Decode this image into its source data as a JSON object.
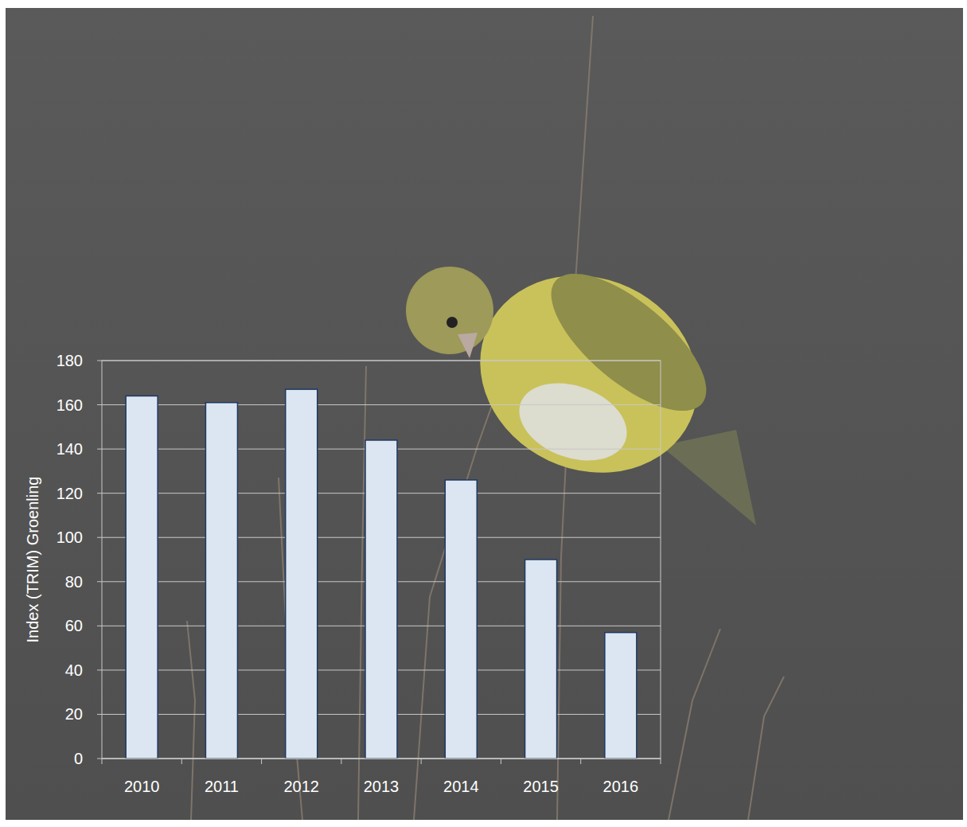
{
  "chart_data": {
    "type": "bar",
    "y_label": "Index (TRIM) Groenling",
    "categories": [
      "2010",
      "2011",
      "2012",
      "2013",
      "2014",
      "2015",
      "2016"
    ],
    "values": [
      164,
      161,
      167,
      144,
      126,
      90,
      57
    ],
    "color": "#dce6f2",
    "ylim": [
      0,
      180
    ],
    "yticks": [
      0,
      20,
      40,
      60,
      80,
      100,
      120,
      140,
      160,
      180
    ],
    "grid": true
  }
}
